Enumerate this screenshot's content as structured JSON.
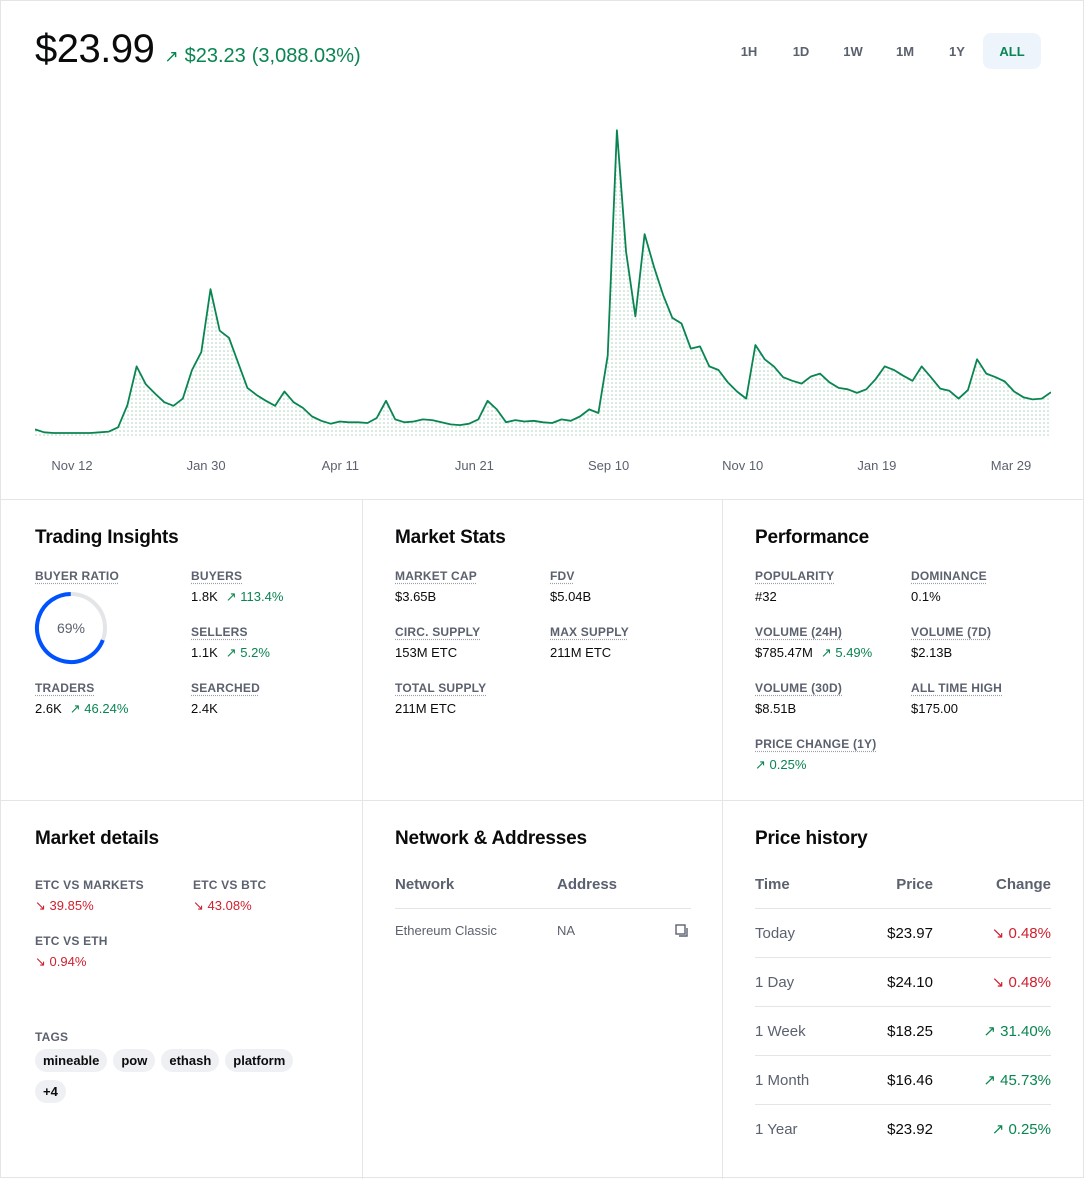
{
  "header": {
    "price": "$23.99",
    "change_abs": "$23.23",
    "change_pct": "(3,088.03%)",
    "change_arrow": "↗",
    "ranges": [
      "1H",
      "1D",
      "1W",
      "1M",
      "1Y",
      "ALL"
    ],
    "active_range": "ALL"
  },
  "colors": {
    "up": "#098551",
    "down": "#cf202f",
    "accent": "#0052ff"
  },
  "chart_data": {
    "type": "area",
    "x_ticks": [
      "Nov 12",
      "Jan 30",
      "Apr 11",
      "Jun 21",
      "Sep 10",
      "Nov 10",
      "Jan 19",
      "Mar 29"
    ],
    "values": [
      1.2,
      0.8,
      0.7,
      0.7,
      0.7,
      0.7,
      0.7,
      0.8,
      0.9,
      1.5,
      4.6,
      10.0,
      7.5,
      6.2,
      5.0,
      4.5,
      5.5,
      9.5,
      12.0,
      20.8,
      15.0,
      14.0,
      10.5,
      7.0,
      6.0,
      5.2,
      4.5,
      6.5,
      5.0,
      4.2,
      3.0,
      2.4,
      2.0,
      2.3,
      2.2,
      2.2,
      2.1,
      2.8,
      5.2,
      2.6,
      2.2,
      2.3,
      2.6,
      2.5,
      2.2,
      1.9,
      1.8,
      2.0,
      2.6,
      5.2,
      4.0,
      2.2,
      2.5,
      2.3,
      2.4,
      2.2,
      2.1,
      2.6,
      2.4,
      3.0,
      4.0,
      3.5,
      11.5,
      43.0,
      26.0,
      17.0,
      28.5,
      24.0,
      20.0,
      16.8,
      16.0,
      12.5,
      12.8,
      10.0,
      9.5,
      7.8,
      6.5,
      5.5,
      13.0,
      11.0,
      10.0,
      8.5,
      8.0,
      7.6,
      8.6,
      9.0,
      7.8,
      7.0,
      6.8,
      6.3,
      6.8,
      8.2,
      10.0,
      9.5,
      8.7,
      8.0,
      10.0,
      8.5,
      6.9,
      6.6,
      5.5,
      6.7,
      11.0,
      9.0,
      8.5,
      7.9,
      6.5,
      5.7,
      5.4,
      5.5,
      6.4
    ],
    "ymin": 0,
    "ymax": 45
  },
  "trading": {
    "title": "Trading Insights",
    "buyer_ratio_label": "BUYER RATIO",
    "buyer_ratio": "69%",
    "buyer_ratio_value": 69,
    "buyers_label": "BUYERS",
    "buyers_value": "1.8K",
    "buyers_change": "113.4%",
    "sellers_label": "SELLERS",
    "sellers_value": "1.1K",
    "sellers_change": "5.2%",
    "traders_label": "TRADERS",
    "traders_value": "2.6K",
    "traders_change": "46.24%",
    "searched_label": "SEARCHED",
    "searched_value": "2.4K"
  },
  "market_stats": {
    "title": "Market Stats",
    "market_cap_label": "MARKET CAP",
    "market_cap": "$3.65B",
    "fdv_label": "FDV",
    "fdv": "$5.04B",
    "circ_label": "CIRC. SUPPLY",
    "circ": "153M ETC",
    "max_label": "MAX SUPPLY",
    "max": "211M ETC",
    "total_label": "TOTAL SUPPLY",
    "total": "211M ETC"
  },
  "performance": {
    "title": "Performance",
    "popularity_label": "POPULARITY",
    "popularity": "#32",
    "dominance_label": "DOMINANCE",
    "dominance": "0.1%",
    "vol24_label": "VOLUME (24H)",
    "vol24": "$785.47M",
    "vol24_change": "5.49%",
    "vol7_label": "VOLUME (7D)",
    "vol7": "$2.13B",
    "vol30_label": "VOLUME (30D)",
    "vol30": "$8.51B",
    "ath_label": "ALL TIME HIGH",
    "ath": "$175.00",
    "pc1y_label": "PRICE CHANGE (1Y)",
    "pc1y": "0.25%"
  },
  "market_details": {
    "title": "Market details",
    "vs_markets_label": "ETC VS MARKETS",
    "vs_markets": "39.85%",
    "vs_btc_label": "ETC VS BTC",
    "vs_btc": "43.08%",
    "vs_eth_label": "ETC VS ETH",
    "vs_eth": "0.94%",
    "tags_label": "TAGS",
    "tags": [
      "mineable",
      "pow",
      "ethash",
      "platform",
      "+4"
    ]
  },
  "network": {
    "title": "Network & Addresses",
    "col_network": "Network",
    "col_address": "Address",
    "row_network": "Ethereum Classic",
    "row_address": "NA"
  },
  "price_history": {
    "title": "Price history",
    "col_time": "Time",
    "col_price": "Price",
    "col_change": "Change",
    "rows": [
      {
        "time": "Today",
        "price": "$23.97",
        "change": "0.48%",
        "dir": "down"
      },
      {
        "time": "1 Day",
        "price": "$24.10",
        "change": "0.48%",
        "dir": "down"
      },
      {
        "time": "1 Week",
        "price": "$18.25",
        "change": "31.40%",
        "dir": "up"
      },
      {
        "time": "1 Month",
        "price": "$16.46",
        "change": "45.73%",
        "dir": "up"
      },
      {
        "time": "1 Year",
        "price": "$23.92",
        "change": "0.25%",
        "dir": "up"
      }
    ]
  }
}
